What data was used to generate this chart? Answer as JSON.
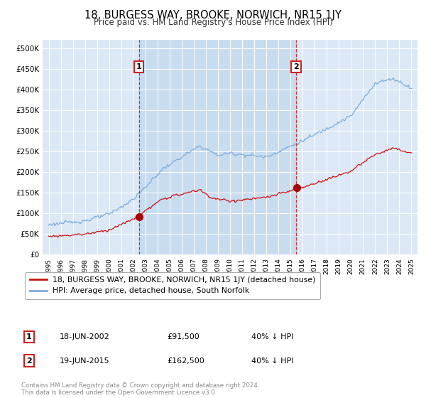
{
  "title": "18, BURGESS WAY, BROOKE, NORWICH, NR15 1JY",
  "subtitle": "Price paid vs. HM Land Registry's House Price Index (HPI)",
  "plot_bg_color": "#dce8f5",
  "shade_color": "#c8dcf0",
  "ylim": [
    0,
    520000
  ],
  "yticks": [
    0,
    50000,
    100000,
    150000,
    200000,
    250000,
    300000,
    350000,
    400000,
    450000,
    500000
  ],
  "ytick_labels": [
    "£0",
    "£50K",
    "£100K",
    "£150K",
    "£200K",
    "£250K",
    "£300K",
    "£350K",
    "£400K",
    "£450K",
    "£500K"
  ],
  "hpi_color": "#7aadda",
  "price_color": "#cc1111",
  "marker_color": "#aa0000",
  "sale1_year": 2002.46,
  "sale1_price": 91500,
  "sale1_label": "1",
  "sale1_date_str": "18-JUN-2002",
  "sale1_pct": "40% ↓ HPI",
  "sale2_year": 2015.46,
  "sale2_price": 162500,
  "sale2_label": "2",
  "sale2_date_str": "19-JUN-2015",
  "sale2_pct": "40% ↓ HPI",
  "legend_label1": "18, BURGESS WAY, BROOKE, NORWICH, NR15 1JY (detached house)",
  "legend_label2": "HPI: Average price, detached house, South Norfolk",
  "footer": "Contains HM Land Registry data © Crown copyright and database right 2024.\nThis data is licensed under the Open Government Licence v3.0.",
  "xmin": 1994.5,
  "xmax": 2025.5
}
